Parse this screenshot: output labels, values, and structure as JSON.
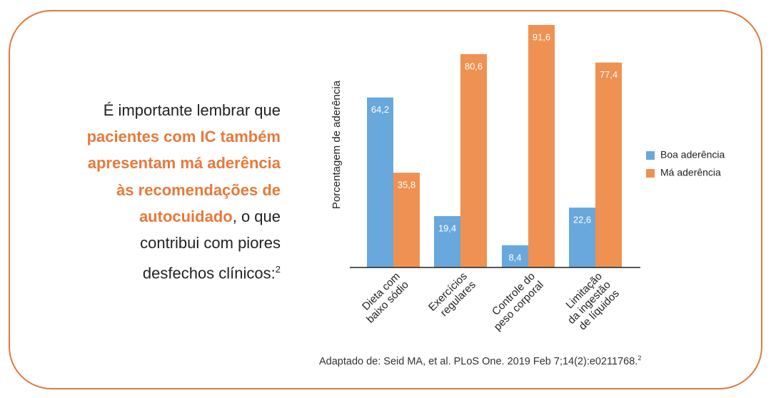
{
  "note": {
    "lines": [
      [
        {
          "text": "É importante lembrar que",
          "highlight": false
        }
      ],
      [
        {
          "text": "pacientes com IC também",
          "highlight": true
        }
      ],
      [
        {
          "text": "apresentam má aderência",
          "highlight": true
        }
      ],
      [
        {
          "text": "às recomendações de",
          "highlight": true
        }
      ],
      [
        {
          "text": "autocuidado",
          "highlight": true
        },
        {
          "text": ", o que",
          "highlight": false
        }
      ],
      [
        {
          "text": "contribui com piores",
          "highlight": false
        }
      ],
      [
        {
          "text": "desfechos clínicos:",
          "highlight": false
        }
      ]
    ],
    "superscript": "2",
    "highlight_color": "#e8793a"
  },
  "chart_data": {
    "type": "bar",
    "y_label": "Porcentagem de aderência",
    "categories": [
      [
        "Dieta com",
        "baixo sódio"
      ],
      [
        "Exercícios",
        "regulares"
      ],
      [
        "Controle do",
        "peso corporal"
      ],
      [
        "Limitação",
        "da ingestão",
        "de líquidos"
      ]
    ],
    "series": [
      {
        "name": "Boa aderência",
        "color": "#69a8dc",
        "values": [
          64.2,
          19.4,
          8.4,
          22.6
        ],
        "value_labels": [
          "64,2",
          "19,4",
          "8,4",
          "22,6"
        ]
      },
      {
        "name": "Má aderência",
        "color": "#ef9152",
        "values": [
          35.8,
          80.6,
          91.6,
          77.4
        ],
        "value_labels": [
          "35,8",
          "80,6",
          "91,6",
          "77,4"
        ]
      }
    ],
    "ylim": [
      0,
      92
    ],
    "legend": "right"
  },
  "source": {
    "text": "Adaptado de: Seid MA, et al. PLoS One. 2019 Feb 7;14(2):e0211768.",
    "superscript": "2"
  }
}
